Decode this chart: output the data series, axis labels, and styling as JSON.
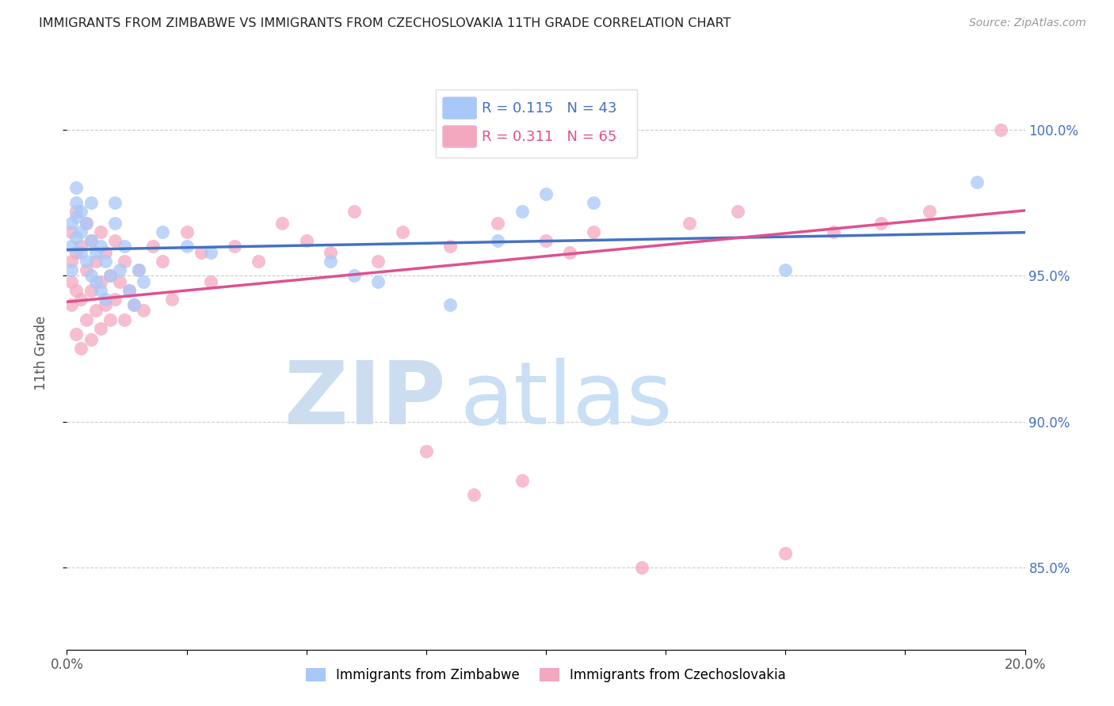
{
  "title": "IMMIGRANTS FROM ZIMBABWE VS IMMIGRANTS FROM CZECHOSLOVAKIA 11TH GRADE CORRELATION CHART",
  "source": "Source: ZipAtlas.com",
  "ylabel": "11th Grade",
  "ytick_labels": [
    "85.0%",
    "90.0%",
    "95.0%",
    "100.0%"
  ],
  "ytick_values": [
    0.85,
    0.9,
    0.95,
    1.0
  ],
  "xlim": [
    0.0,
    0.2
  ],
  "ylim": [
    0.822,
    1.025
  ],
  "legend_r_zim": "0.115",
  "legend_n_zim": "43",
  "legend_r_czech": "0.311",
  "legend_n_czech": "65",
  "color_zimbabwe": "#a8c8f8",
  "color_czech": "#f4a8c0",
  "color_line_zimbabwe": "#4472c4",
  "color_line_czech": "#e05090",
  "watermark_zip_color": "#ccddf0",
  "watermark_atlas_color": "#c8dff5",
  "scatter_zimbabwe_x": [
    0.001,
    0.001,
    0.001,
    0.002,
    0.002,
    0.002,
    0.002,
    0.003,
    0.003,
    0.003,
    0.004,
    0.004,
    0.005,
    0.005,
    0.005,
    0.006,
    0.006,
    0.007,
    0.007,
    0.008,
    0.008,
    0.009,
    0.01,
    0.01,
    0.011,
    0.012,
    0.013,
    0.014,
    0.015,
    0.016,
    0.02,
    0.025,
    0.03,
    0.055,
    0.06,
    0.065,
    0.08,
    0.09,
    0.095,
    0.1,
    0.11,
    0.15,
    0.19
  ],
  "scatter_zimbabwe_y": [
    0.952,
    0.96,
    0.968,
    0.963,
    0.97,
    0.975,
    0.98,
    0.958,
    0.965,
    0.972,
    0.955,
    0.968,
    0.95,
    0.962,
    0.975,
    0.948,
    0.958,
    0.945,
    0.96,
    0.942,
    0.955,
    0.95,
    0.968,
    0.975,
    0.952,
    0.96,
    0.945,
    0.94,
    0.952,
    0.948,
    0.965,
    0.96,
    0.958,
    0.955,
    0.95,
    0.948,
    0.94,
    0.962,
    0.972,
    0.978,
    0.975,
    0.952,
    0.982
  ],
  "scatter_czech_x": [
    0.001,
    0.001,
    0.001,
    0.001,
    0.002,
    0.002,
    0.002,
    0.002,
    0.003,
    0.003,
    0.003,
    0.004,
    0.004,
    0.004,
    0.005,
    0.005,
    0.005,
    0.006,
    0.006,
    0.007,
    0.007,
    0.007,
    0.008,
    0.008,
    0.009,
    0.009,
    0.01,
    0.01,
    0.011,
    0.012,
    0.012,
    0.013,
    0.014,
    0.015,
    0.016,
    0.018,
    0.02,
    0.022,
    0.025,
    0.028,
    0.03,
    0.035,
    0.04,
    0.045,
    0.05,
    0.055,
    0.06,
    0.065,
    0.07,
    0.075,
    0.08,
    0.085,
    0.09,
    0.095,
    0.1,
    0.105,
    0.11,
    0.12,
    0.13,
    0.14,
    0.15,
    0.16,
    0.17,
    0.18,
    0.195
  ],
  "scatter_czech_y": [
    0.94,
    0.948,
    0.955,
    0.965,
    0.93,
    0.945,
    0.958,
    0.972,
    0.925,
    0.942,
    0.96,
    0.935,
    0.952,
    0.968,
    0.928,
    0.945,
    0.962,
    0.938,
    0.955,
    0.932,
    0.948,
    0.965,
    0.94,
    0.958,
    0.935,
    0.95,
    0.942,
    0.962,
    0.948,
    0.935,
    0.955,
    0.945,
    0.94,
    0.952,
    0.938,
    0.96,
    0.955,
    0.942,
    0.965,
    0.958,
    0.948,
    0.96,
    0.955,
    0.968,
    0.962,
    0.958,
    0.972,
    0.955,
    0.965,
    0.89,
    0.96,
    0.875,
    0.968,
    0.88,
    0.962,
    0.958,
    0.965,
    0.85,
    0.968,
    0.972,
    0.855,
    0.965,
    0.968,
    0.972,
    1.0
  ]
}
